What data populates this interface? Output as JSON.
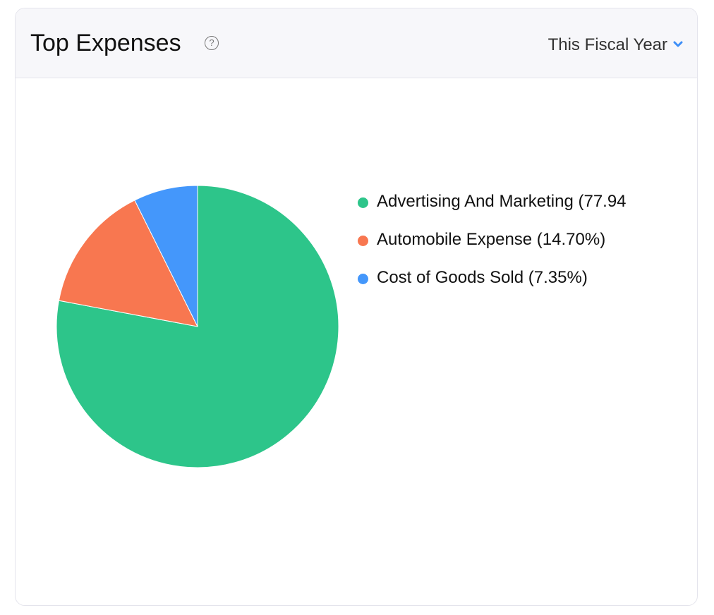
{
  "header": {
    "title": "Top Expenses",
    "help_icon": "question-circle-icon",
    "period": "This Fiscal Year",
    "period_icon": "chevron-down-icon"
  },
  "colors": {
    "accent": "#3d8ef7"
  },
  "chart_data": {
    "type": "pie",
    "start": "12 o'clock, clockwise",
    "legend_position": "right",
    "slices": [
      {
        "name": "Advertising And Marketing",
        "value": 77.94,
        "color": "#2dc58a"
      },
      {
        "name": "Automobile Expense",
        "value": 14.7,
        "color": "#f87750"
      },
      {
        "name": "Cost of Goods Sold",
        "value": 7.35,
        "color": "#4497fb"
      }
    ],
    "legend": [
      "Advertising And Marketing (77.94",
      "Automobile Expense (14.70%)",
      "Cost of Goods Sold (7.35%)"
    ]
  }
}
